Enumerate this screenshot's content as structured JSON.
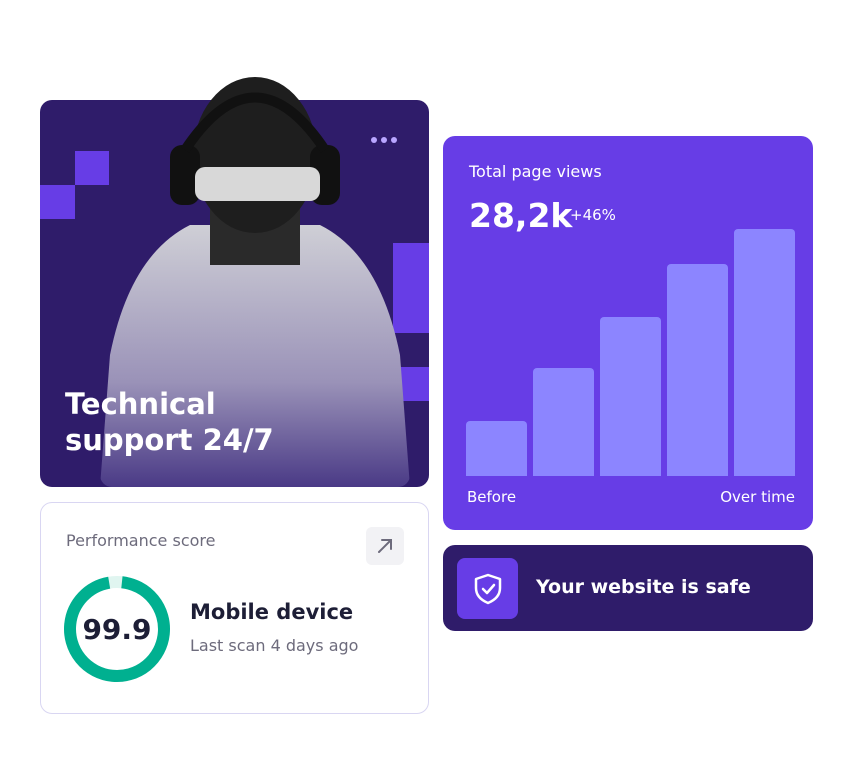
{
  "support": {
    "title": "Technical\nsupport  24/7",
    "menu_icon": "more-horizontal-icon",
    "image": "person-with-headphones-and-sunglasses"
  },
  "page_views": {
    "label": "Total page views",
    "value": "28,2k",
    "change": "+46%",
    "axis_start": "Before",
    "axis_end": "Over time"
  },
  "chart_data": {
    "type": "bar",
    "categories": [
      "1",
      "2",
      "3",
      "4",
      "5"
    ],
    "values": [
      55,
      108,
      159,
      212,
      247
    ],
    "xlabel": "",
    "ylabel": "",
    "tick_labels": [
      "Before",
      "Over time"
    ],
    "bar_color": "#8c85ff",
    "grid": false
  },
  "safe": {
    "text": "Your website is safe",
    "icon": "shield-check-icon"
  },
  "performance": {
    "label": "Performance score",
    "score": "99.9",
    "score_percent": 99.9,
    "device": "Mobile device",
    "last_scan": "Last scan 4 days ago",
    "button_icon": "arrow-up-right-icon",
    "ring_color": "#00b090"
  },
  "colors": {
    "purple": "#673de6",
    "dark_purple": "#2f1c6a",
    "bar": "#8c85ff",
    "green": "#00b090"
  }
}
